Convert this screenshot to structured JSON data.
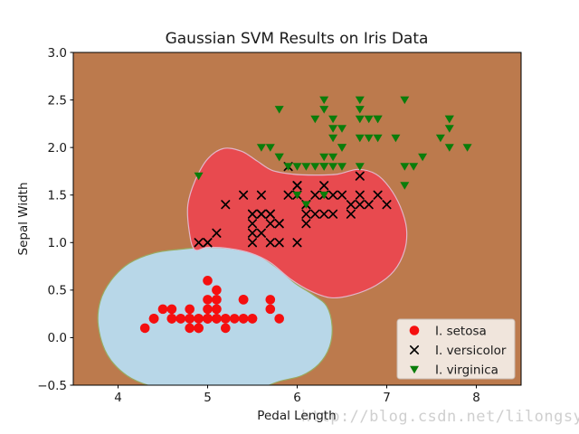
{
  "watermark": "http://blog.csdn.net/lilongsy",
  "chart_data": {
    "type": "scatter",
    "title": "Gaussian SVM Results on Iris Data",
    "xlabel": "Pedal Length",
    "ylabel": "Sepal Width",
    "xlim": [
      3.5,
      8.5
    ],
    "ylim": [
      -0.5,
      3.0
    ],
    "grid": false,
    "legend_position": "lower right",
    "x_ticks": [
      {
        "v": 4,
        "label": "4"
      },
      {
        "v": 5,
        "label": "5"
      },
      {
        "v": 6,
        "label": "6"
      },
      {
        "v": 7,
        "label": "7"
      },
      {
        "v": 8,
        "label": "8"
      }
    ],
    "y_ticks": [
      {
        "v": 3.0,
        "label": "3.0"
      },
      {
        "v": 2.5,
        "label": "2.5"
      },
      {
        "v": 2.0,
        "label": "2.0"
      },
      {
        "v": 1.5,
        "label": "1.5"
      },
      {
        "v": 1.0,
        "label": "1.0"
      },
      {
        "v": 0.5,
        "label": "0.5"
      },
      {
        "v": 0.0,
        "label": "0.0"
      },
      {
        "v": -0.5,
        "label": "−0.5"
      }
    ],
    "background_region_color": "#bc7a4d",
    "regions": [
      {
        "name": "setosa-decision-region",
        "color": "#b8d7e8",
        "stroke": "#9aa95f",
        "points": [
          [
            3.78,
            0.12
          ],
          [
            3.8,
            0.38
          ],
          [
            3.92,
            0.6
          ],
          [
            4.12,
            0.78
          ],
          [
            4.4,
            0.89
          ],
          [
            4.7,
            0.93
          ],
          [
            5.0,
            0.95
          ],
          [
            5.3,
            0.93
          ],
          [
            5.55,
            0.87
          ],
          [
            5.78,
            0.73
          ],
          [
            5.98,
            0.57
          ],
          [
            6.18,
            0.45
          ],
          [
            6.33,
            0.33
          ],
          [
            6.39,
            0.12
          ],
          [
            6.36,
            -0.1
          ],
          [
            6.24,
            -0.28
          ],
          [
            6.05,
            -0.4
          ],
          [
            5.8,
            -0.46
          ],
          [
            5.55,
            -0.54
          ],
          [
            5.15,
            -0.58
          ],
          [
            4.75,
            -0.57
          ],
          [
            4.4,
            -0.52
          ],
          [
            4.1,
            -0.4
          ],
          [
            3.88,
            -0.18
          ]
        ]
      },
      {
        "name": "versicolor-decision-region",
        "color": "#e84a4f",
        "stroke": "#e2b6ca",
        "points": [
          [
            4.85,
            0.93
          ],
          [
            4.79,
            1.15
          ],
          [
            4.78,
            1.4
          ],
          [
            4.86,
            1.65
          ],
          [
            5.0,
            1.88
          ],
          [
            5.18,
            1.99
          ],
          [
            5.38,
            1.96
          ],
          [
            5.55,
            1.86
          ],
          [
            5.72,
            1.76
          ],
          [
            5.95,
            1.72
          ],
          [
            6.2,
            1.71
          ],
          [
            6.45,
            1.72
          ],
          [
            6.68,
            1.77
          ],
          [
            6.88,
            1.72
          ],
          [
            7.03,
            1.58
          ],
          [
            7.15,
            1.38
          ],
          [
            7.22,
            1.15
          ],
          [
            7.2,
            0.92
          ],
          [
            7.08,
            0.7
          ],
          [
            6.88,
            0.55
          ],
          [
            6.62,
            0.45
          ],
          [
            6.38,
            0.42
          ],
          [
            6.15,
            0.49
          ],
          [
            5.92,
            0.62
          ],
          [
            5.7,
            0.79
          ],
          [
            5.48,
            0.89
          ],
          [
            5.22,
            0.94
          ],
          [
            5.0,
            0.95
          ]
        ]
      }
    ],
    "series": [
      {
        "name": "I. setosa",
        "marker": "circle",
        "color": "#f50f0f",
        "points": [
          [
            5.1,
            0.2
          ],
          [
            4.9,
            0.2
          ],
          [
            4.7,
            0.2
          ],
          [
            4.6,
            0.2
          ],
          [
            5.0,
            0.2
          ],
          [
            5.4,
            0.4
          ],
          [
            4.6,
            0.3
          ],
          [
            5.0,
            0.2
          ],
          [
            4.4,
            0.2
          ],
          [
            4.9,
            0.1
          ],
          [
            5.4,
            0.2
          ],
          [
            4.8,
            0.2
          ],
          [
            4.8,
            0.1
          ],
          [
            4.3,
            0.1
          ],
          [
            5.8,
            0.2
          ],
          [
            5.7,
            0.4
          ],
          [
            5.4,
            0.4
          ],
          [
            5.1,
            0.3
          ],
          [
            5.7,
            0.3
          ],
          [
            5.1,
            0.3
          ],
          [
            5.4,
            0.2
          ],
          [
            5.1,
            0.4
          ],
          [
            4.6,
            0.2
          ],
          [
            5.1,
            0.5
          ],
          [
            4.8,
            0.2
          ],
          [
            5.0,
            0.2
          ],
          [
            5.0,
            0.4
          ],
          [
            5.2,
            0.2
          ],
          [
            5.2,
            0.2
          ],
          [
            4.7,
            0.2
          ],
          [
            4.8,
            0.2
          ],
          [
            5.4,
            0.4
          ],
          [
            5.2,
            0.1
          ],
          [
            5.5,
            0.2
          ],
          [
            4.9,
            0.2
          ],
          [
            5.0,
            0.2
          ],
          [
            5.5,
            0.2
          ],
          [
            4.9,
            0.1
          ],
          [
            4.4,
            0.2
          ],
          [
            5.1,
            0.2
          ],
          [
            5.0,
            0.3
          ],
          [
            4.5,
            0.3
          ],
          [
            4.4,
            0.2
          ],
          [
            5.0,
            0.6
          ],
          [
            5.1,
            0.4
          ],
          [
            4.8,
            0.3
          ],
          [
            5.1,
            0.2
          ],
          [
            4.6,
            0.2
          ],
          [
            5.3,
            0.2
          ],
          [
            5.0,
            0.2
          ]
        ]
      },
      {
        "name": "I. versicolor",
        "marker": "x",
        "color": "#000000",
        "points": [
          [
            7.0,
            1.4
          ],
          [
            6.4,
            1.5
          ],
          [
            6.9,
            1.5
          ],
          [
            5.5,
            1.3
          ],
          [
            6.5,
            1.5
          ],
          [
            5.7,
            1.3
          ],
          [
            6.3,
            1.6
          ],
          [
            4.9,
            1.0
          ],
          [
            6.6,
            1.3
          ],
          [
            5.2,
            1.4
          ],
          [
            5.0,
            1.0
          ],
          [
            5.9,
            1.5
          ],
          [
            6.0,
            1.0
          ],
          [
            6.1,
            1.4
          ],
          [
            5.6,
            1.3
          ],
          [
            6.7,
            1.4
          ],
          [
            5.6,
            1.5
          ],
          [
            5.8,
            1.0
          ],
          [
            6.2,
            1.5
          ],
          [
            5.6,
            1.1
          ],
          [
            5.9,
            1.8
          ],
          [
            6.1,
            1.3
          ],
          [
            6.3,
            1.5
          ],
          [
            6.1,
            1.2
          ],
          [
            6.4,
            1.3
          ],
          [
            6.6,
            1.4
          ],
          [
            6.8,
            1.4
          ],
          [
            6.7,
            1.7
          ],
          [
            6.0,
            1.5
          ],
          [
            5.7,
            1.0
          ],
          [
            5.5,
            1.1
          ],
          [
            5.5,
            1.0
          ],
          [
            5.8,
            1.2
          ],
          [
            6.0,
            1.6
          ],
          [
            5.4,
            1.5
          ],
          [
            6.0,
            1.6
          ],
          [
            6.7,
            1.5
          ],
          [
            6.3,
            1.3
          ],
          [
            5.6,
            1.3
          ],
          [
            5.5,
            1.3
          ],
          [
            5.5,
            1.2
          ],
          [
            6.1,
            1.4
          ],
          [
            5.8,
            1.2
          ],
          [
            5.0,
            1.0
          ],
          [
            5.6,
            1.3
          ],
          [
            5.7,
            1.2
          ],
          [
            5.7,
            1.3
          ],
          [
            6.2,
            1.3
          ],
          [
            5.1,
            1.1
          ],
          [
            5.7,
            1.3
          ]
        ]
      },
      {
        "name": "I. virginica",
        "marker": "triangle-down",
        "color": "#0a7d0a",
        "points": [
          [
            6.3,
            2.5
          ],
          [
            5.8,
            1.9
          ],
          [
            7.1,
            2.1
          ],
          [
            6.3,
            1.8
          ],
          [
            6.5,
            2.2
          ],
          [
            7.6,
            2.1
          ],
          [
            4.9,
            1.7
          ],
          [
            7.3,
            1.8
          ],
          [
            6.7,
            1.8
          ],
          [
            7.2,
            2.5
          ],
          [
            6.5,
            2.0
          ],
          [
            6.4,
            1.9
          ],
          [
            6.8,
            2.1
          ],
          [
            5.7,
            2.0
          ],
          [
            5.8,
            2.4
          ],
          [
            6.4,
            2.3
          ],
          [
            6.5,
            1.8
          ],
          [
            7.7,
            2.2
          ],
          [
            7.7,
            2.3
          ],
          [
            6.0,
            1.5
          ],
          [
            6.9,
            2.3
          ],
          [
            5.6,
            2.0
          ],
          [
            7.7,
            2.0
          ],
          [
            6.3,
            1.8
          ],
          [
            6.7,
            2.1
          ],
          [
            7.2,
            1.8
          ],
          [
            6.2,
            1.8
          ],
          [
            6.1,
            1.8
          ],
          [
            6.4,
            2.1
          ],
          [
            7.2,
            1.6
          ],
          [
            7.4,
            1.9
          ],
          [
            7.9,
            2.0
          ],
          [
            6.4,
            2.2
          ],
          [
            6.3,
            1.5
          ],
          [
            6.1,
            1.4
          ],
          [
            7.7,
            2.3
          ],
          [
            6.3,
            2.4
          ],
          [
            6.4,
            1.8
          ],
          [
            6.0,
            1.8
          ],
          [
            6.9,
            2.1
          ],
          [
            6.7,
            2.4
          ],
          [
            6.9,
            2.3
          ],
          [
            5.8,
            1.9
          ],
          [
            6.8,
            2.3
          ],
          [
            6.7,
            2.5
          ],
          [
            6.7,
            2.3
          ],
          [
            6.3,
            1.9
          ],
          [
            6.5,
            2.0
          ],
          [
            6.2,
            2.3
          ],
          [
            5.9,
            1.8
          ]
        ]
      }
    ],
    "legend": {
      "entries": [
        {
          "label": "I. setosa"
        },
        {
          "label": "I. versicolor"
        },
        {
          "label": "I. virginica"
        }
      ],
      "face_color": "#f0e5dc",
      "edge_color": "#c9bcb3"
    }
  }
}
